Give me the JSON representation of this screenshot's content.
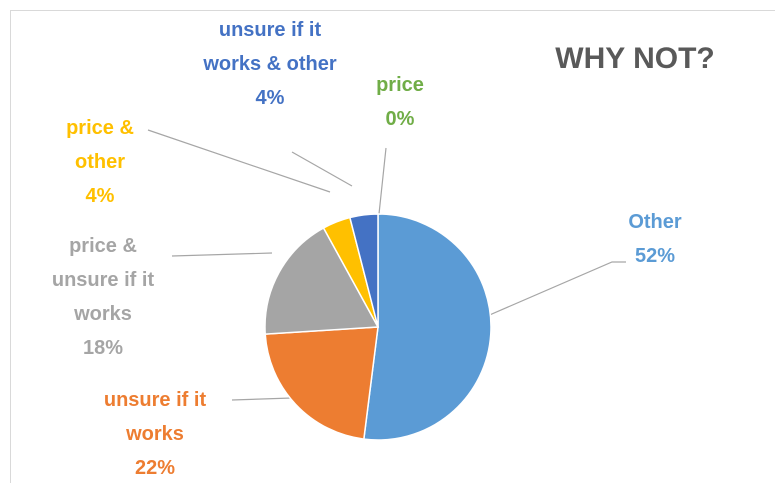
{
  "chart_data": {
    "type": "pie",
    "title": "WHY NOT?",
    "categories": [
      "Other",
      "unsure if it works",
      "price & unsure if it works",
      "price & other",
      "unsure if it works & other",
      "price"
    ],
    "values": [
      52,
      22,
      18,
      4,
      4,
      0
    ],
    "value_labels": [
      "52%",
      "22%",
      "18%",
      "4%",
      "4%",
      "0%"
    ],
    "colors": [
      "#5b9bd5",
      "#ed7d31",
      "#a5a5a5",
      "#ffc000",
      "#4472c4",
      "#70ad47"
    ]
  }
}
